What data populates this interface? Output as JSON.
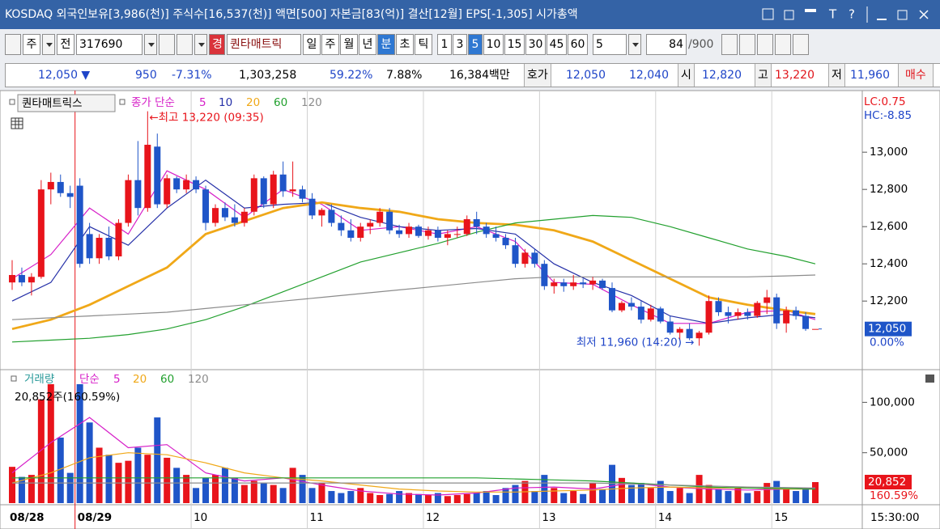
{
  "title_bar": {
    "text": "KOSDAQ 외국인보유[3,986(천)] 주식수[16,537(천)] 액면[500] 자본금[83(억)] 결산[12월] EPS[-1,305] 시가총액",
    "icons": [
      "T",
      "?"
    ]
  },
  "toolbar": {
    "market": "주",
    "scope": "전",
    "code": "317690",
    "badge": "경",
    "name": "퀀타매트릭",
    "periods": [
      "일",
      "주",
      "월",
      "년",
      "분",
      "초",
      "틱"
    ],
    "intervals": [
      "1",
      "3",
      "5",
      "10",
      "15",
      "30",
      "45",
      "60"
    ],
    "unit": "5",
    "count": "84",
    "max": "/900"
  },
  "quote_bar": {
    "price": "12,050 ▼",
    "change": "950",
    "rate": "-7.31%",
    "volume": "1,303,258",
    "ratio1": "59.22%",
    "ratio2": "7.88%",
    "amount": "16,384백만",
    "hoga_label": "호가",
    "ask": "12,050",
    "bid": "12,040",
    "open_label": "시",
    "open": "12,820",
    "high_label": "고",
    "high": "13,220",
    "low_label": "저",
    "low": "11,960",
    "buy": "매수"
  },
  "chart_data": [
    {
      "type": "candlestick",
      "legend_title": "퀀타매트릭스",
      "ma_label": "종가 단순",
      "categories": [
        "08/28",
        null,
        null,
        null,
        null,
        null,
        null,
        "08/29",
        null,
        null,
        null,
        null,
        null,
        null,
        null,
        null,
        null,
        null,
        null,
        "10",
        null,
        null,
        null,
        null,
        null,
        null,
        null,
        null,
        null,
        null,
        null,
        "11",
        null,
        null,
        null,
        null,
        null,
        null,
        null,
        null,
        null,
        null,
        null,
        "12",
        null,
        null,
        null,
        null,
        null,
        null,
        null,
        null,
        null,
        null,
        null,
        "13",
        null,
        null,
        null,
        null,
        null,
        null,
        null,
        null,
        null,
        null,
        null,
        "14",
        null,
        null,
        null,
        null,
        null,
        null,
        null,
        null,
        null,
        null,
        null,
        "15",
        null,
        null,
        null,
        null
      ],
      "open": [
        12300,
        12340,
        12300,
        12330,
        12800,
        12840,
        12780,
        12820,
        12560,
        12430,
        12540,
        12440,
        12620,
        12850,
        12700,
        13030,
        12720,
        12860,
        12800,
        12850,
        12800,
        12620,
        12700,
        12650,
        12620,
        12680,
        12860,
        12720,
        12880,
        12790,
        12800,
        12750,
        12660,
        12690,
        12620,
        12580,
        12540,
        12600,
        12620,
        12680,
        12580,
        12560,
        12600,
        12550,
        12580,
        12540,
        12560,
        12560,
        12640,
        12600,
        12560,
        12540,
        12500,
        12400,
        12460,
        12400,
        12280,
        12300,
        12280,
        12300,
        12290,
        12310,
        12270,
        12150,
        12190,
        12170,
        12100,
        12160,
        12090,
        12030,
        12050,
        12000,
        12030,
        12200,
        12140,
        12120,
        12140,
        12120,
        12190,
        12220,
        12080,
        12150,
        12120,
        12050
      ],
      "high": [
        12420,
        12380,
        12350,
        12850,
        12890,
        12880,
        12820,
        12860,
        12620,
        12560,
        12600,
        12640,
        12880,
        13060,
        13220,
        13100,
        12880,
        12870,
        12880,
        12870,
        12820,
        12720,
        12730,
        12720,
        12700,
        12880,
        12870,
        12900,
        12950,
        12950,
        12820,
        12780,
        12700,
        12720,
        12660,
        12640,
        12620,
        12640,
        12700,
        12700,
        12610,
        12620,
        12610,
        12600,
        12600,
        12580,
        12600,
        12660,
        12680,
        12620,
        12600,
        12560,
        12540,
        12480,
        12480,
        12420,
        12320,
        12320,
        12340,
        12320,
        12330,
        12320,
        12300,
        12200,
        12220,
        12200,
        12180,
        12170,
        12120,
        12060,
        12080,
        12040,
        12230,
        12220,
        12170,
        12160,
        12160,
        12200,
        12260,
        12240,
        12170,
        12170,
        12140,
        12050
      ],
      "low": [
        12260,
        12280,
        12230,
        12320,
        12720,
        12760,
        12700,
        12380,
        12400,
        12400,
        12420,
        12420,
        12600,
        12660,
        12680,
        12700,
        12700,
        12780,
        12780,
        12780,
        12580,
        12600,
        12630,
        12600,
        12600,
        12660,
        12700,
        12700,
        12760,
        12760,
        12730,
        12640,
        12600,
        12600,
        12550,
        12520,
        12520,
        12560,
        12600,
        12560,
        12540,
        12540,
        12540,
        12530,
        12520,
        12500,
        12540,
        12550,
        12560,
        12540,
        12520,
        12480,
        12380,
        12380,
        12380,
        12260,
        12240,
        12250,
        12260,
        12270,
        12260,
        12260,
        12140,
        12140,
        12150,
        12080,
        12090,
        12080,
        12020,
        11990,
        11990,
        11960,
        12020,
        12120,
        12080,
        12100,
        12100,
        12110,
        12130,
        12050,
        12030,
        12100,
        12040,
        12050
      ],
      "close": [
        12340,
        12300,
        12330,
        12800,
        12840,
        12780,
        12760,
        12400,
        12430,
        12540,
        12440,
        12620,
        12850,
        12700,
        13040,
        12720,
        12860,
        12800,
        12850,
        12800,
        12620,
        12700,
        12650,
        12620,
        12680,
        12860,
        12720,
        12880,
        12790,
        12800,
        12750,
        12660,
        12690,
        12620,
        12580,
        12540,
        12600,
        12620,
        12680,
        12580,
        12560,
        12600,
        12550,
        12580,
        12540,
        12560,
        12560,
        12640,
        12600,
        12560,
        12540,
        12500,
        12400,
        12460,
        12400,
        12280,
        12300,
        12280,
        12300,
        12290,
        12310,
        12270,
        12150,
        12190,
        12170,
        12100,
        12160,
        12090,
        12030,
        12050,
        12000,
        12030,
        12200,
        12140,
        12120,
        12140,
        12120,
        12190,
        12220,
        12080,
        12150,
        12120,
        12050,
        12050
      ],
      "up_color": "#e8141b",
      "down_color": "#1f55c8",
      "ma": [
        {
          "name": "5",
          "color": "#d61fc8",
          "x": [
            0,
            4,
            8,
            12,
            16,
            20,
            24,
            28,
            32,
            36,
            40,
            44,
            48,
            52,
            56,
            60,
            64,
            68,
            72,
            76,
            80,
            83
          ],
          "values": [
            12320,
            12450,
            12700,
            12560,
            12900,
            12800,
            12650,
            12800,
            12720,
            12580,
            12600,
            12560,
            12600,
            12520,
            12300,
            12290,
            12180,
            12080,
            12080,
            12140,
            12150,
            12100
          ]
        },
        {
          "name": "10",
          "color": "#2530a8",
          "x": [
            0,
            4,
            8,
            12,
            16,
            20,
            24,
            28,
            32,
            36,
            40,
            44,
            48,
            52,
            56,
            60,
            64,
            68,
            72,
            76,
            80,
            83
          ],
          "values": [
            12200,
            12300,
            12600,
            12500,
            12700,
            12850,
            12700,
            12720,
            12730,
            12650,
            12600,
            12580,
            12590,
            12560,
            12400,
            12300,
            12230,
            12120,
            12080,
            12110,
            12130,
            12110
          ]
        },
        {
          "name": "20",
          "color": "#f0a818",
          "x": [
            0,
            4,
            8,
            12,
            16,
            20,
            24,
            28,
            32,
            36,
            40,
            44,
            48,
            52,
            56,
            60,
            64,
            68,
            72,
            76,
            80,
            83
          ],
          "values": [
            12050,
            12100,
            12180,
            12280,
            12380,
            12560,
            12630,
            12700,
            12730,
            12700,
            12680,
            12640,
            12620,
            12610,
            12580,
            12520,
            12420,
            12320,
            12220,
            12180,
            12150,
            12130
          ]
        },
        {
          "name": "60",
          "color": "#22a02e",
          "x": [
            0,
            4,
            8,
            12,
            16,
            20,
            24,
            28,
            32,
            36,
            40,
            44,
            48,
            52,
            56,
            60,
            64,
            68,
            72,
            76,
            80,
            83
          ],
          "values": [
            11980,
            11990,
            12000,
            12020,
            12050,
            12100,
            12170,
            12250,
            12330,
            12410,
            12460,
            12510,
            12570,
            12620,
            12640,
            12660,
            12650,
            12600,
            12540,
            12480,
            12440,
            12400
          ]
        },
        {
          "name": "120",
          "color": "#8c8c8c",
          "x": [
            0,
            4,
            8,
            12,
            16,
            20,
            24,
            28,
            32,
            36,
            40,
            44,
            48,
            52,
            56,
            60,
            64,
            68,
            72,
            76,
            80,
            83
          ],
          "values": [
            12100,
            12110,
            12120,
            12130,
            12140,
            12160,
            12180,
            12200,
            12220,
            12240,
            12260,
            12280,
            12300,
            12320,
            12330,
            12330,
            12330,
            12330,
            12330,
            12330,
            12335,
            12340
          ]
        }
      ],
      "ylim": [
        11840,
        13305
      ],
      "yticks": [
        {
          "value": 12200,
          "label": "12,200"
        },
        {
          "value": 12400,
          "label": "12,400"
        },
        {
          "value": 12600,
          "label": "12,600"
        },
        {
          "value": 12800,
          "label": "12,800"
        },
        {
          "value": 13000,
          "label": "13,000"
        }
      ],
      "high_note": "←최고 13,220 (09:35)",
      "low_note": "최저 11,960 (14:20) →",
      "lc": "LC:0.75",
      "hc": "HC:-8.85",
      "last_label": "12,050",
      "last_change": "0.00%",
      "time_label": "15:30:00"
    },
    {
      "type": "bar",
      "name": "거래량",
      "ma_label": "단순",
      "values": [
        36000,
        26000,
        28000,
        103000,
        118000,
        65000,
        30000,
        118000,
        80000,
        55000,
        48000,
        40000,
        42000,
        55000,
        48000,
        85000,
        45000,
        35000,
        28000,
        15000,
        25000,
        28000,
        35000,
        25000,
        18000,
        22000,
        20000,
        18000,
        15000,
        35000,
        28000,
        15000,
        20000,
        12000,
        10000,
        12000,
        15000,
        10000,
        8000,
        9000,
        12000,
        10000,
        9000,
        8000,
        10000,
        7000,
        8000,
        9000,
        10000,
        12000,
        8000,
        15000,
        18000,
        22000,
        12000,
        28000,
        15000,
        10000,
        12000,
        9000,
        20000,
        14000,
        38000,
        25000,
        18000,
        20000,
        15000,
        22000,
        12000,
        15000,
        10000,
        28000,
        18000,
        14000,
        12000,
        15000,
        10000,
        12000,
        20000,
        22000,
        14000,
        12000,
        15000,
        20852
      ],
      "ma": [
        {
          "name": "5",
          "color": "#d61fc8",
          "x": [
            0,
            4,
            8,
            12,
            16,
            20,
            24,
            28,
            32,
            36,
            40,
            44,
            48,
            52,
            56,
            60,
            64,
            68,
            72,
            76,
            80,
            83
          ],
          "values": [
            30000,
            60000,
            85000,
            55000,
            58000,
            30000,
            22000,
            25000,
            18000,
            12000,
            9000,
            8000,
            10000,
            15000,
            16000,
            14000,
            20000,
            16000,
            14000,
            13000,
            14000,
            15000
          ]
        },
        {
          "name": "20",
          "color": "#f0a818",
          "x": [
            0,
            4,
            8,
            12,
            16,
            20,
            24,
            28,
            32,
            36,
            40,
            44,
            48,
            52,
            56,
            60,
            64,
            68,
            72,
            76,
            80,
            83
          ],
          "values": [
            20000,
            30000,
            45000,
            50000,
            48000,
            40000,
            30000,
            25000,
            22000,
            18000,
            14000,
            12000,
            11000,
            11000,
            12000,
            13000,
            15000,
            16000,
            15000,
            15000,
            14000,
            14000
          ]
        },
        {
          "name": "60",
          "color": "#22a02e",
          "x": [
            0,
            4,
            8,
            12,
            16,
            20,
            24,
            28,
            32,
            36,
            40,
            44,
            48,
            52,
            56,
            60,
            64,
            68,
            72,
            76,
            80,
            83
          ],
          "values": [
            25000,
            25000,
            25000,
            25000,
            25000,
            25000,
            25000,
            25000,
            25000,
            25000,
            25000,
            25000,
            25000,
            24000,
            23000,
            22000,
            20000,
            18000,
            16000,
            15000,
            14500,
            14000
          ]
        },
        {
          "name": "120",
          "color": "#8c8c8c",
          "x": [
            0,
            4,
            8,
            12,
            16,
            20,
            24,
            28,
            32,
            36,
            40,
            44,
            48,
            52,
            56,
            60,
            64,
            68,
            72,
            76,
            80,
            83
          ],
          "values": [
            20000,
            20000,
            20000,
            20000,
            20000,
            20000,
            20000,
            20000,
            20000,
            20000,
            20000,
            20000,
            20000,
            20000,
            20000,
            20000,
            19000,
            18000,
            17000,
            16000,
            15500,
            15000
          ]
        }
      ],
      "ylim": [
        0,
        130000
      ],
      "yticks": [
        {
          "value": 50000,
          "label": "50,000"
        },
        {
          "value": 100000,
          "label": "100,000"
        }
      ],
      "info": "20,852주(160.59%)",
      "last_label": "20,852",
      "last_change": "160.59%"
    }
  ]
}
